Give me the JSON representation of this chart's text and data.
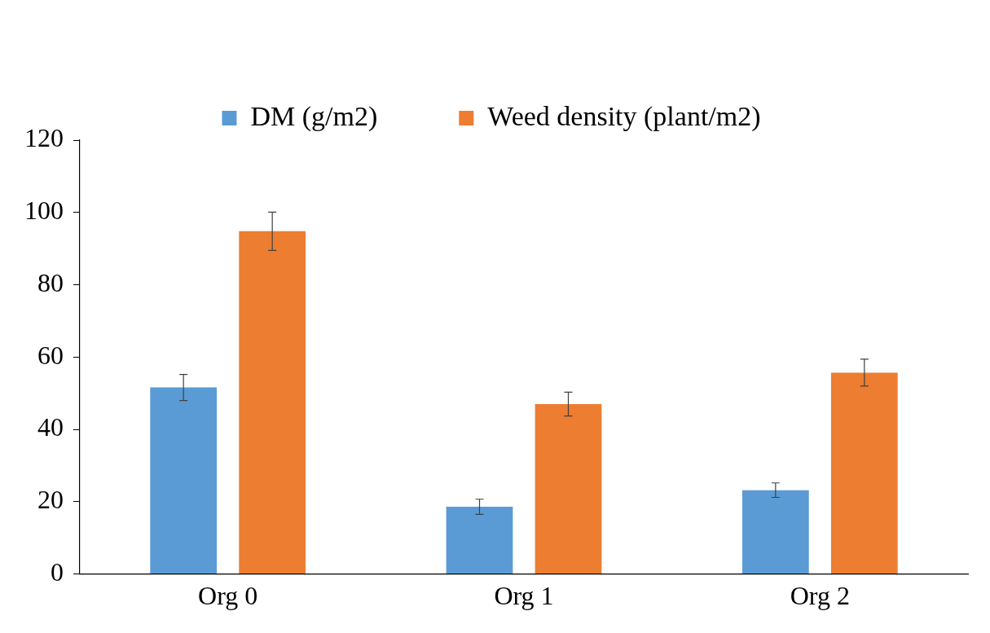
{
  "chart_data": {
    "type": "bar",
    "categories": [
      "Org 0",
      "Org 1",
      "Org 2"
    ],
    "series": [
      {
        "name": "DM (g/m2)",
        "color": "#5b9bd5",
        "values": [
          51.6,
          18.6,
          23.2
        ],
        "errors": [
          3.6,
          2.1,
          2.0
        ]
      },
      {
        "name": "Weed density (plant/m2)",
        "color": "#ed7d31",
        "values": [
          94.8,
          47.0,
          55.7
        ],
        "errors": [
          5.3,
          3.3,
          3.7
        ]
      }
    ],
    "ylim": [
      0,
      120
    ],
    "yticks": [
      0,
      20,
      40,
      60,
      80,
      100,
      120
    ],
    "grid": false,
    "legend": "top"
  }
}
